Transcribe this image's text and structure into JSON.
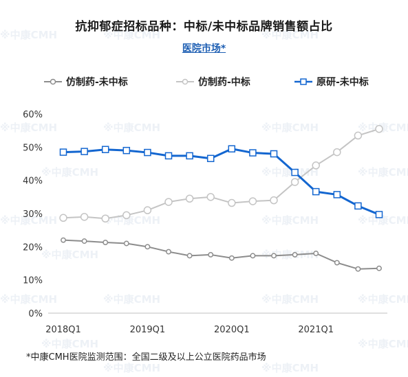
{
  "title": "抗抑郁症招标品种：中标/未中标品牌销售额占比",
  "subtitle": "医院市场*",
  "watermark_text": "※中康CMH",
  "footnote": "*中康CMH医院监测范围：全国二级及以上公立医院药品市场",
  "chart_data": {
    "type": "line",
    "title": "抗抑郁症招标品种：中标/未中标品牌销售额占比",
    "subtitle": "医院市场*",
    "x": [
      "2018Q1",
      "",
      "",
      "",
      "2019Q1",
      "",
      "",
      "",
      "2020Q1",
      "",
      "",
      "",
      "2021Q1",
      "",
      "",
      ""
    ],
    "x_tick_labels": [
      "2018Q1",
      "2019Q1",
      "2020Q1",
      "2021Q1"
    ],
    "y_tick_labels": [
      "0%",
      "10%",
      "20%",
      "30%",
      "40%",
      "50%",
      "60%"
    ],
    "ylim": [
      0,
      60
    ],
    "y_unit": "%",
    "grid": false,
    "legend_position": "top",
    "series": [
      {
        "name": "仿制药-未中标",
        "color": "#8c8c8c",
        "marker": "circle",
        "values": [
          22,
          21.7,
          21.3,
          21,
          20,
          18.5,
          17.3,
          17.6,
          16.6,
          17.3,
          17.3,
          17.6,
          18,
          15.2,
          13.3,
          13.5
        ]
      },
      {
        "name": "仿制药-中标",
        "color": "#c4c4c4",
        "marker": "circle",
        "values": [
          28.7,
          29,
          28.5,
          29.5,
          31,
          33.5,
          34.5,
          35,
          33.2,
          33.7,
          34,
          39.5,
          44.5,
          48.5,
          53.5,
          55.5
        ]
      },
      {
        "name": "原研-未中标",
        "color": "#1366d0",
        "marker": "square",
        "values": [
          48.5,
          48.7,
          49.3,
          49,
          48.4,
          47.4,
          47.4,
          46.6,
          49.5,
          48.3,
          48,
          42.4,
          36.6,
          35.7,
          32.3,
          29.7
        ]
      }
    ]
  }
}
